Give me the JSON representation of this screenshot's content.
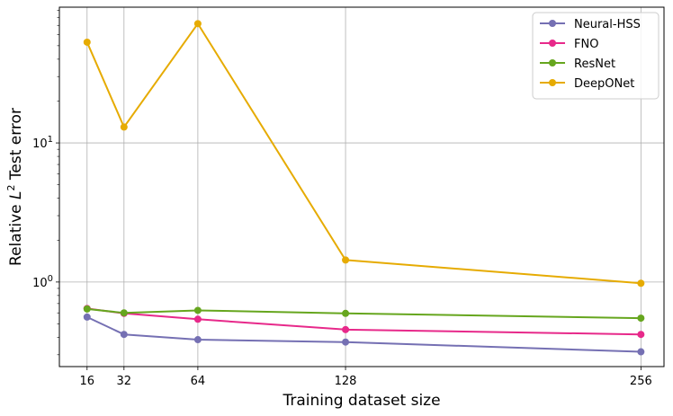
{
  "chart_data": {
    "type": "line",
    "x": [
      16,
      32,
      64,
      128,
      256
    ],
    "xlim": [
      4,
      266
    ],
    "ylim": [
      0.2466,
      94.6
    ],
    "yscale": "log",
    "xlabel": "Training dataset size",
    "ylabel_prefix": "Relative ",
    "ylabel_var": "L",
    "ylabel_sup": "2",
    "ylabel_suffix": " Test error",
    "grid": true,
    "legend_position": "top-right",
    "xticks": [
      {
        "value": 16,
        "label": "16"
      },
      {
        "value": 32,
        "label": "32"
      },
      {
        "value": 64,
        "label": "64"
      },
      {
        "value": 128,
        "label": "128"
      },
      {
        "value": 256,
        "label": "256"
      }
    ],
    "yticks": [
      {
        "value": 1,
        "base": "10",
        "exp": "0"
      },
      {
        "value": 10,
        "base": "10",
        "exp": "1"
      }
    ],
    "series": [
      {
        "name": "Neural-HSS",
        "color": "#7570b3",
        "values": [
          0.56,
          0.42,
          0.385,
          0.37,
          0.315
        ]
      },
      {
        "name": "FNO",
        "color": "#e7298a",
        "values": [
          0.645,
          0.595,
          0.54,
          0.455,
          0.42
        ]
      },
      {
        "name": "ResNet",
        "color": "#66a61e",
        "values": [
          0.64,
          0.6,
          0.625,
          0.595,
          0.55
        ]
      },
      {
        "name": "DeepONet",
        "color": "#e6ab02",
        "values": [
          53.0,
          13.0,
          72.0,
          1.44,
          0.98
        ]
      }
    ]
  }
}
